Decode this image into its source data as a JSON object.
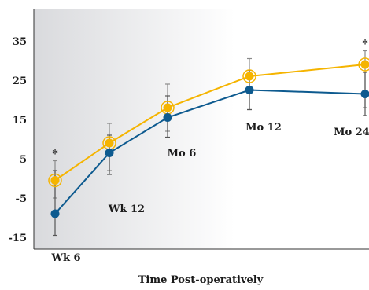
{
  "chart_data": {
    "type": "line",
    "title": "",
    "xlabel": "Time Post-operatively",
    "ylabel": "",
    "ylim": [
      -18,
      43
    ],
    "yticks": [
      -15,
      -5,
      5,
      15,
      25,
      35
    ],
    "grid": false,
    "categories": [
      "Wk 6",
      "Wk 12",
      "Mo 6",
      "Mo 12",
      "Mo 24"
    ],
    "series": [
      {
        "color": "#F5B400",
        "marker": "ring",
        "values": [
          -0.5,
          9,
          18,
          26,
          29
        ],
        "error_low": [
          -5,
          2,
          12,
          17.5,
          18
        ],
        "error_high": [
          4.5,
          14,
          24,
          30.5,
          32.5
        ]
      },
      {
        "color": "#0D5A8F",
        "marker": "dot",
        "values": [
          -9,
          6.5,
          15.5,
          22.5,
          21.5
        ],
        "error_low": [
          -14.5,
          1,
          10.5,
          17.5,
          16
        ],
        "error_high": [
          2,
          11,
          21,
          27.5,
          27
        ]
      }
    ],
    "annotations": [
      {
        "category": "Wk 6",
        "text": "*"
      },
      {
        "category": "Mo 24",
        "text": "*"
      }
    ],
    "background_gradient": [
      "#d9dadd",
      "#ffffff"
    ]
  }
}
